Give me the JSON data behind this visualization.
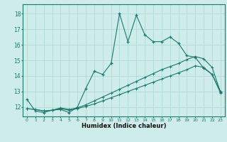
{
  "xlabel": "Humidex (Indice chaleur)",
  "ylabel": "",
  "background_color": "#cdecea",
  "grid_color": "#afd8d5",
  "line_color": "#1a7a6e",
  "x_ticks": [
    0,
    1,
    2,
    3,
    4,
    5,
    6,
    7,
    8,
    9,
    10,
    11,
    12,
    13,
    14,
    15,
    16,
    17,
    18,
    19,
    20,
    21,
    22,
    23
  ],
  "y_ticks": [
    12,
    13,
    14,
    15,
    16,
    17,
    18
  ],
  "xlim": [
    -0.5,
    23.5
  ],
  "ylim": [
    11.4,
    18.6
  ],
  "series1_x": [
    0,
    1,
    2,
    3,
    4,
    5,
    6,
    7,
    8,
    9,
    10,
    11,
    12,
    13,
    14,
    15,
    16,
    17,
    18,
    19,
    20,
    21,
    22,
    23
  ],
  "series1_y": [
    12.5,
    11.75,
    11.65,
    11.8,
    11.85,
    11.65,
    12.0,
    13.2,
    14.3,
    14.1,
    14.8,
    18.0,
    16.2,
    17.9,
    16.65,
    16.2,
    16.2,
    16.5,
    16.1,
    15.3,
    15.2,
    14.5,
    14.1,
    13.0
  ],
  "series2_x": [
    0,
    1,
    2,
    3,
    4,
    5,
    6,
    7,
    8,
    9,
    10,
    11,
    12,
    13,
    14,
    15,
    16,
    17,
    18,
    19,
    20,
    21,
    22,
    23
  ],
  "series2_y": [
    11.9,
    11.85,
    11.75,
    11.8,
    11.9,
    11.8,
    11.9,
    12.05,
    12.2,
    12.4,
    12.6,
    12.8,
    13.0,
    13.2,
    13.4,
    13.6,
    13.8,
    14.0,
    14.2,
    14.4,
    14.65,
    14.55,
    14.1,
    12.9
  ],
  "series3_x": [
    0,
    1,
    2,
    3,
    4,
    5,
    6,
    7,
    8,
    9,
    10,
    11,
    12,
    13,
    14,
    15,
    16,
    17,
    18,
    19,
    20,
    21,
    22,
    23
  ],
  "series3_y": [
    11.9,
    11.85,
    11.75,
    11.8,
    11.95,
    11.85,
    11.95,
    12.15,
    12.4,
    12.65,
    12.9,
    13.15,
    13.4,
    13.65,
    13.9,
    14.15,
    14.4,
    14.6,
    14.8,
    15.05,
    15.25,
    15.1,
    14.55,
    12.95
  ]
}
